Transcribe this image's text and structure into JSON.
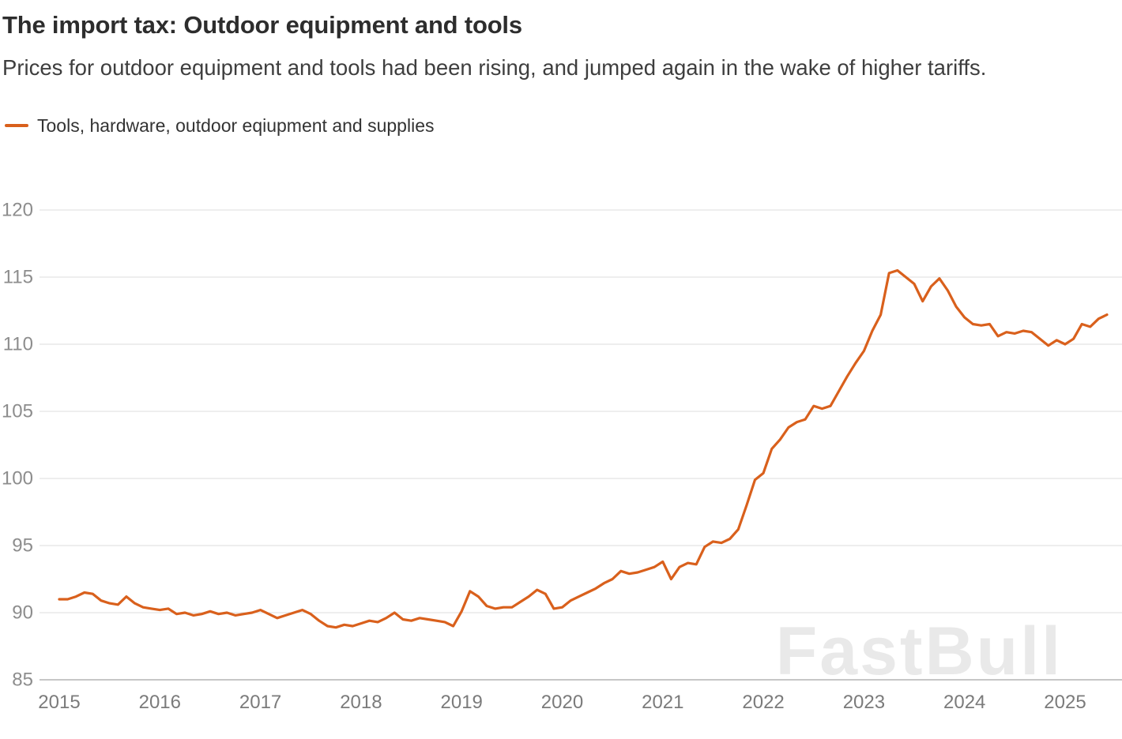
{
  "header": {
    "title": "The import tax: Outdoor equipment and tools",
    "subtitle": "Prices for outdoor equipment and tools had been rising, and jumped again in the wake of higher tariffs."
  },
  "legend": {
    "label": "Tools, hardware, outdoor eqiupment and supplies"
  },
  "watermark": "FastBull",
  "colors": {
    "line": "#d9601c",
    "grid": "#dcdcdc",
    "axis": "#b3b3b3",
    "ytick": "#8d8d8d",
    "xtick": "#7b7b7b"
  },
  "chart_data": {
    "type": "line",
    "title": "The import tax: Outdoor equipment and tools",
    "subtitle": "Prices for outdoor equipment and tools had been rising, and jumped again in the wake of higher tariffs.",
    "xlabel": "",
    "ylabel": "",
    "ylim": [
      85,
      120
    ],
    "y_ticks": [
      85,
      90,
      95,
      100,
      105,
      110,
      115,
      120
    ],
    "x_ticks": [
      2015,
      2016,
      2017,
      2018,
      2019,
      2020,
      2021,
      2022,
      2023,
      2024,
      2025
    ],
    "grid": "horizontal",
    "legend_position": "top-left",
    "frequency": "monthly",
    "start": "2015-01",
    "end": "2025-06",
    "series": [
      {
        "name": "Tools, hardware, outdoor eqiupment and supplies",
        "color": "#d9601c",
        "values": [
          91.0,
          91.0,
          91.2,
          91.5,
          91.4,
          90.9,
          90.7,
          90.6,
          91.2,
          90.7,
          90.4,
          90.3,
          90.2,
          90.3,
          89.9,
          90.0,
          89.8,
          89.9,
          90.1,
          89.9,
          90.0,
          89.8,
          89.9,
          90.0,
          90.2,
          89.9,
          89.6,
          89.8,
          90.0,
          90.2,
          89.9,
          89.4,
          89.0,
          88.9,
          89.1,
          89.0,
          89.2,
          89.4,
          89.3,
          89.6,
          90.0,
          89.5,
          89.4,
          89.6,
          89.5,
          89.4,
          89.3,
          89.0,
          90.1,
          91.6,
          91.2,
          90.5,
          90.3,
          90.4,
          90.4,
          90.8,
          91.2,
          91.7,
          91.4,
          90.3,
          90.4,
          90.9,
          91.2,
          91.5,
          91.8,
          92.2,
          92.5,
          93.1,
          92.9,
          93.0,
          93.2,
          93.4,
          93.8,
          92.5,
          93.4,
          93.7,
          93.6,
          94.9,
          95.3,
          95.2,
          95.5,
          96.2,
          98.0,
          99.9,
          100.4,
          102.2,
          102.9,
          103.8,
          104.2,
          104.4,
          105.4,
          105.2,
          105.4,
          106.5,
          107.6,
          108.6,
          109.5,
          111.0,
          112.2,
          115.3,
          115.5,
          115.0,
          114.5,
          113.2,
          114.3,
          114.9,
          114.0,
          112.8,
          112.0,
          111.5,
          111.4,
          111.5,
          110.6,
          110.9,
          110.8,
          111.0,
          110.9,
          110.4,
          109.9,
          110.3,
          110.0,
          110.4,
          111.5,
          111.3,
          111.9,
          112.2
        ]
      }
    ]
  }
}
